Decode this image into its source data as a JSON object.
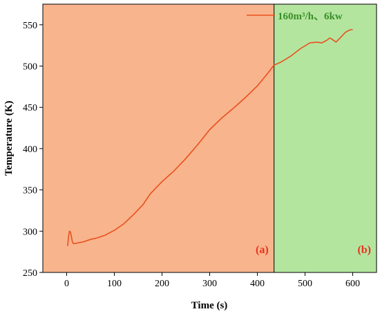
{
  "chart_data": {
    "type": "line",
    "xlabel": "Time (s)",
    "ylabel": "Temperature (K)",
    "xlim": [
      -50,
      650
    ],
    "ylim": [
      250,
      575
    ],
    "xticks": [
      0,
      100,
      200,
      300,
      400,
      500,
      600
    ],
    "yticks": [
      250,
      300,
      350,
      400,
      450,
      500,
      550
    ],
    "grid": false,
    "legend_position": "top-right",
    "series": [
      {
        "name": "160m³/h、6kw",
        "color": "#e8501e",
        "x": [
          2,
          4,
          6,
          8,
          10,
          12,
          14,
          18,
          25,
          35,
          50,
          65,
          80,
          100,
          120,
          140,
          160,
          175,
          185,
          200,
          225,
          250,
          275,
          300,
          325,
          350,
          375,
          400,
          420,
          435,
          450,
          470,
          490,
          510,
          525,
          535,
          545,
          552,
          558,
          565,
          575,
          585,
          595,
          600
        ],
        "y": [
          282,
          294,
          300,
          299,
          293,
          287,
          285,
          285,
          286,
          287,
          290,
          292,
          295,
          301,
          309,
          320,
          332,
          345,
          351,
          360,
          373,
          388,
          405,
          423,
          437,
          449,
          462,
          476,
          490,
          501,
          505,
          512,
          521,
          528,
          529,
          528,
          531,
          534,
          532,
          529,
          535,
          541,
          544,
          544
        ]
      }
    ],
    "regions": [
      {
        "label": "(a)",
        "x_start": -50,
        "x_end": 435,
        "color": "#f8b48c",
        "label_color": "#e8311f"
      },
      {
        "label": "(b)",
        "x_start": 435,
        "x_end": 650,
        "color": "#b4e59f",
        "label_color": "#e8311f"
      }
    ],
    "legend_text_color": "#3a8f2a"
  }
}
